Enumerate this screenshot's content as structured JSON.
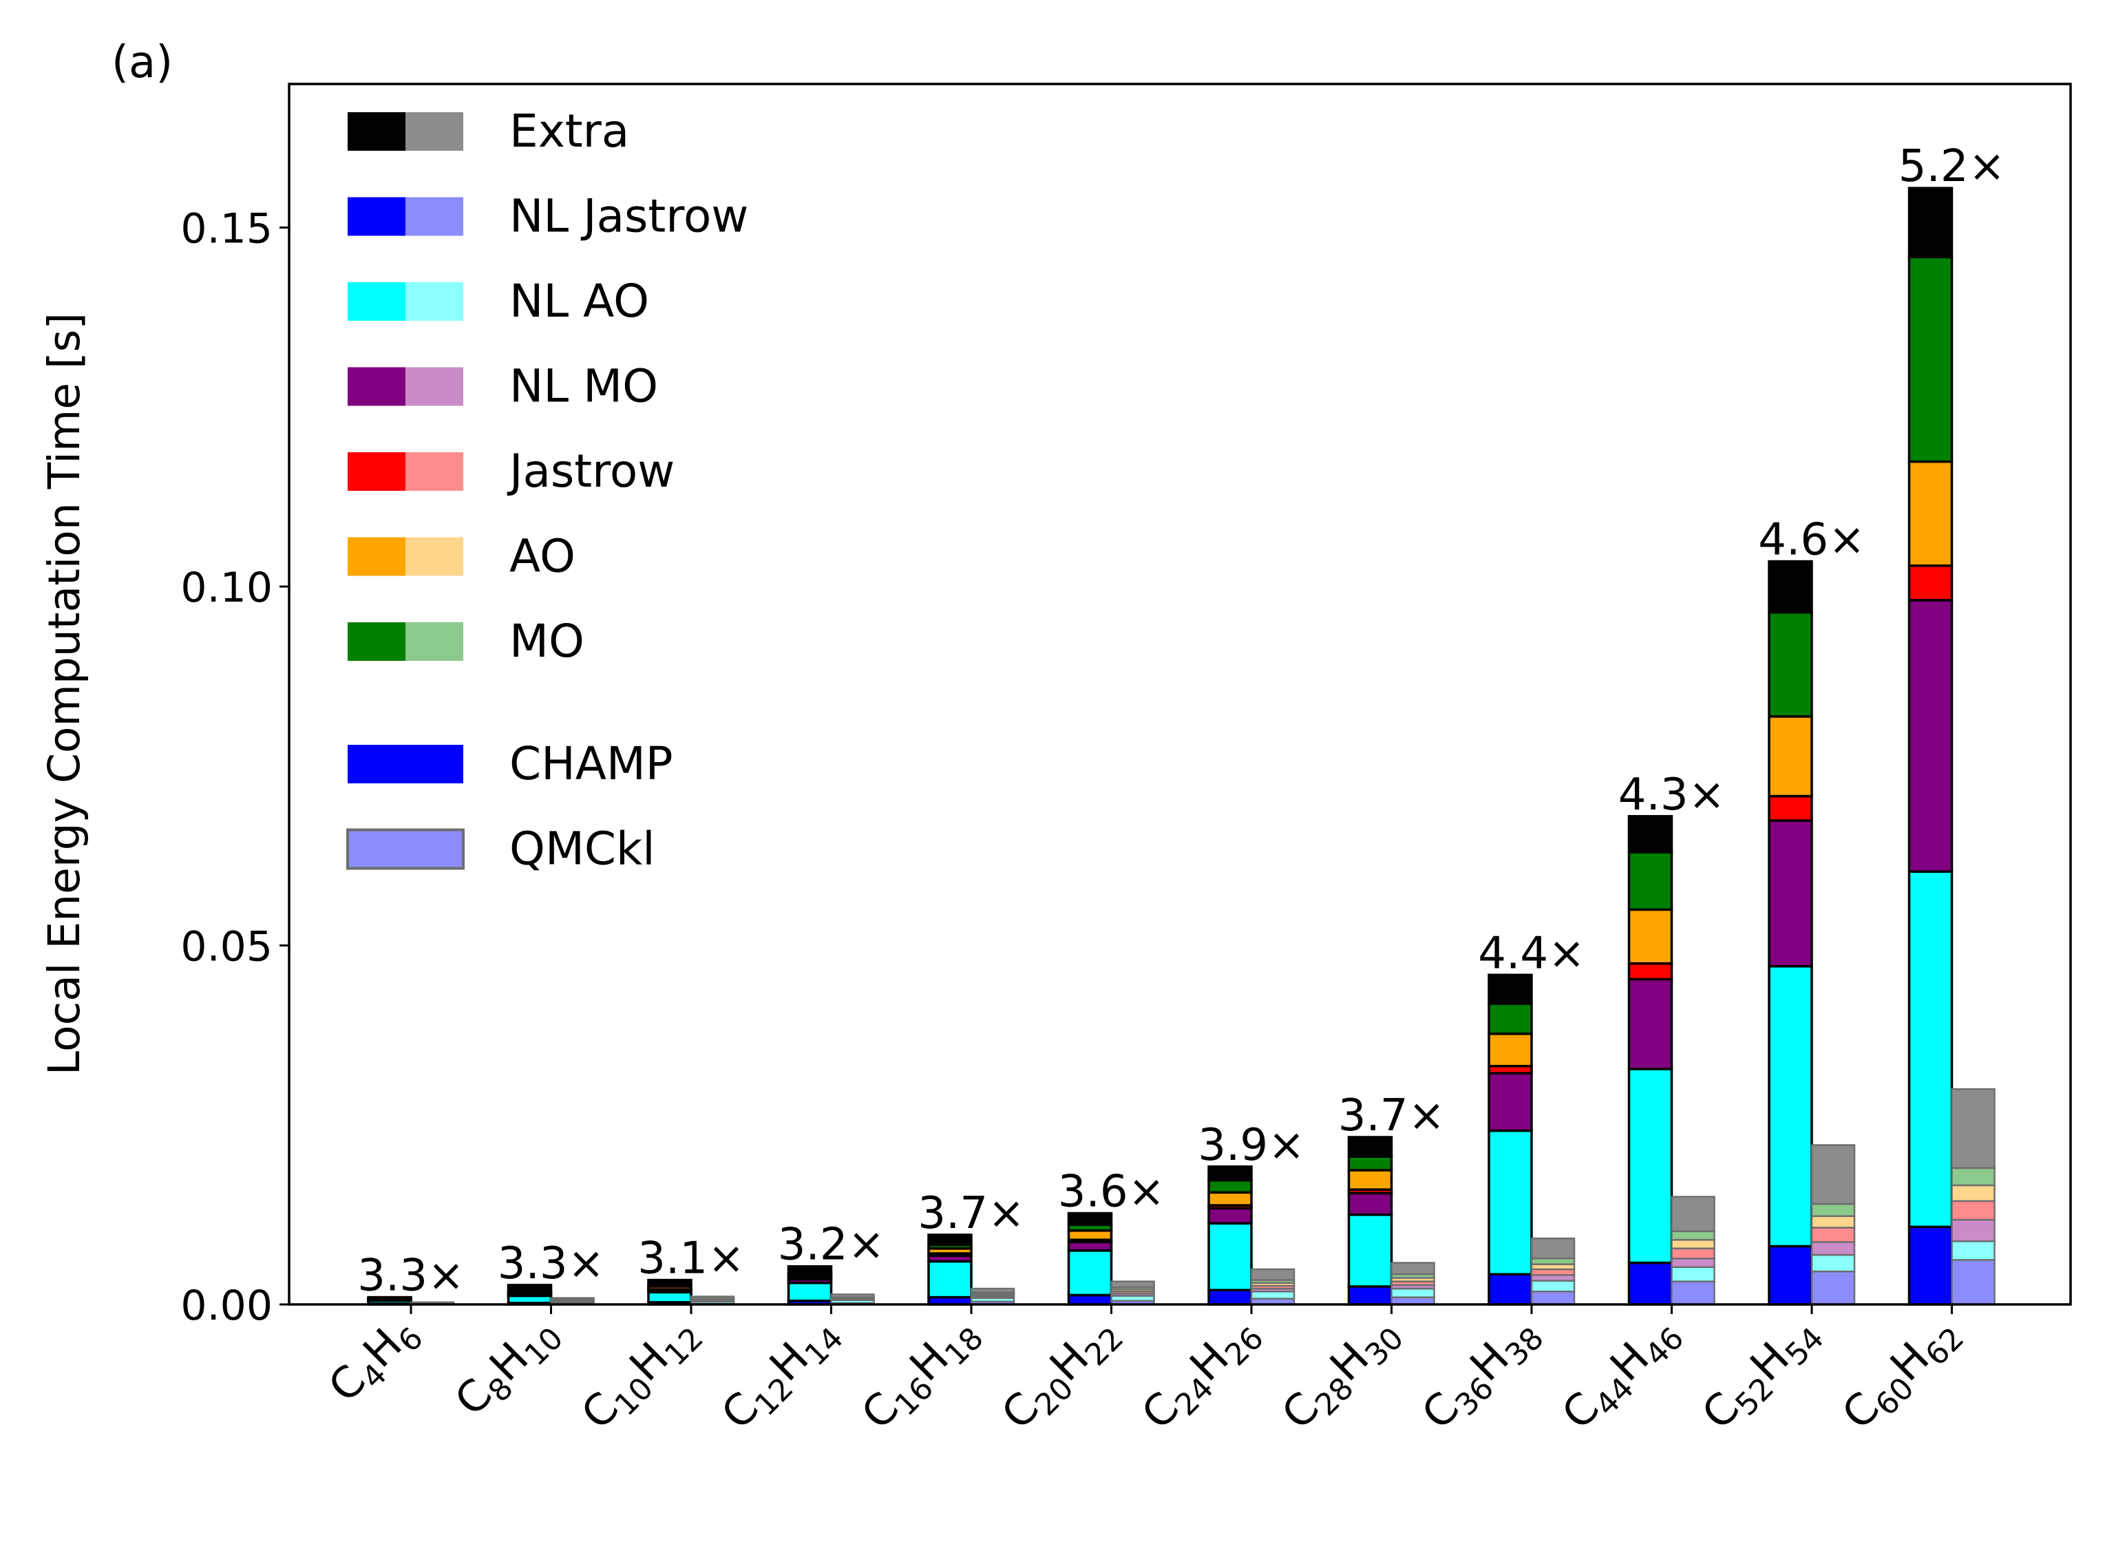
{
  "figure": {
    "panel_label": "(a)"
  },
  "colors": {
    "Extra": {
      "champ": "#000000",
      "qmckl": "#8c8c8c"
    },
    "NL Jastrow": {
      "champ": "#0000ff",
      "qmckl": "#8c8cff"
    },
    "NL AO": {
      "champ": "#00ffff",
      "qmckl": "#8cffff"
    },
    "NL MO": {
      "champ": "#800080",
      "qmckl": "#c98cc9"
    },
    "Jastrow": {
      "champ": "#ff0000",
      "qmckl": "#ff8c8c"
    },
    "AO": {
      "champ": "#ffa500",
      "qmckl": "#ffd68c"
    },
    "MO": {
      "champ": "#008000",
      "qmckl": "#8cc98c"
    }
  },
  "legend": {
    "components": [
      "Extra",
      "NL Jastrow",
      "NL AO",
      "NL MO",
      "Jastrow",
      "AO",
      "MO"
    ],
    "codes": [
      {
        "label": "CHAMP",
        "color": "#0000ff"
      },
      {
        "label": "QMCkl",
        "color": "#8c8cff"
      }
    ]
  },
  "chart_data": {
    "type": "bar",
    "stacked": true,
    "title": "",
    "xlabel": "",
    "ylabel": "Local Energy Computation Time [s]",
    "ylim": [
      0,
      0.17
    ],
    "yticks": [
      "0.00",
      "0.05",
      "0.10",
      "0.15"
    ],
    "grid": false,
    "legend_position": "top-left",
    "categories": [
      "C4H6",
      "C8H10",
      "C10H12",
      "C12H14",
      "C16H18",
      "C20H22",
      "C24H26",
      "C28H30",
      "C36H38",
      "C44H46",
      "C52H54",
      "C60H62"
    ],
    "category_labels": [
      [
        [
          "C",
          ""
        ],
        [
          "4",
          "sub"
        ],
        [
          "H",
          ""
        ],
        [
          "6",
          "sub"
        ]
      ],
      [
        [
          "C",
          ""
        ],
        [
          "8",
          "sub"
        ],
        [
          "H",
          ""
        ],
        [
          "10",
          "sub"
        ]
      ],
      [
        [
          "C",
          ""
        ],
        [
          "10",
          "sub"
        ],
        [
          "H",
          ""
        ],
        [
          "12",
          "sub"
        ]
      ],
      [
        [
          "C",
          ""
        ],
        [
          "12",
          "sub"
        ],
        [
          "H",
          ""
        ],
        [
          "14",
          "sub"
        ]
      ],
      [
        [
          "C",
          ""
        ],
        [
          "16",
          "sub"
        ],
        [
          "H",
          ""
        ],
        [
          "18",
          "sub"
        ]
      ],
      [
        [
          "C",
          ""
        ],
        [
          "20",
          "sub"
        ],
        [
          "H",
          ""
        ],
        [
          "22",
          "sub"
        ]
      ],
      [
        [
          "C",
          ""
        ],
        [
          "24",
          "sub"
        ],
        [
          "H",
          ""
        ],
        [
          "26",
          "sub"
        ]
      ],
      [
        [
          "C",
          ""
        ],
        [
          "28",
          "sub"
        ],
        [
          "H",
          ""
        ],
        [
          "30",
          "sub"
        ]
      ],
      [
        [
          "C",
          ""
        ],
        [
          "36",
          "sub"
        ],
        [
          "H",
          ""
        ],
        [
          "38",
          "sub"
        ]
      ],
      [
        [
          "C",
          ""
        ],
        [
          "44",
          "sub"
        ],
        [
          "H",
          ""
        ],
        [
          "46",
          "sub"
        ]
      ],
      [
        [
          "C",
          ""
        ],
        [
          "52",
          "sub"
        ],
        [
          "H",
          ""
        ],
        [
          "54",
          "sub"
        ]
      ],
      [
        [
          "C",
          ""
        ],
        [
          "60",
          "sub"
        ],
        [
          "H",
          ""
        ],
        [
          "62",
          "sub"
        ]
      ]
    ],
    "speedups": [
      "3.3×",
      "3.3×",
      "3.1×",
      "3.2×",
      "3.7×",
      "3.6×",
      "3.9×",
      "3.7×",
      "4.4×",
      "4.3×",
      "4.6×",
      "5.2×"
    ],
    "component_order": [
      "NL Jastrow",
      "NL AO",
      "NL MO",
      "Jastrow",
      "AO",
      "MO",
      "Extra"
    ],
    "series": [
      {
        "name": "CHAMP",
        "components": {
          "NL Jastrow": [
            0.0001,
            0.0002,
            0.0003,
            0.0005,
            0.001,
            0.0013,
            0.002,
            0.0025,
            0.0042,
            0.0058,
            0.0081,
            0.0108
          ],
          "NL AO": [
            0.0004,
            0.001,
            0.0014,
            0.0025,
            0.005,
            0.0062,
            0.0093,
            0.01,
            0.02,
            0.027,
            0.039,
            0.0495
          ],
          "NL MO": [
            0.0001,
            0.0002,
            0.0003,
            0.0005,
            0.0008,
            0.0012,
            0.0021,
            0.003,
            0.008,
            0.0125,
            0.0203,
            0.0378
          ],
          "Jastrow": [
            0.0,
            0.0001,
            0.0001,
            0.0002,
            0.0003,
            0.0003,
            0.0004,
            0.0005,
            0.001,
            0.0022,
            0.0034,
            0.0048
          ],
          "AO": [
            0.0001,
            0.0002,
            0.0004,
            0.0003,
            0.0007,
            0.0013,
            0.0018,
            0.0027,
            0.0045,
            0.0075,
            0.0111,
            0.0145
          ],
          "MO": [
            0.0001,
            0.0001,
            0.0002,
            0.0003,
            0.0005,
            0.0008,
            0.0017,
            0.0019,
            0.0042,
            0.008,
            0.0145,
            0.0285
          ],
          "Extra": [
            0.0002,
            0.0009,
            0.0007,
            0.001,
            0.0014,
            0.0016,
            0.0019,
            0.0027,
            0.004,
            0.005,
            0.0071,
            0.0096
          ]
        }
      },
      {
        "name": "QMCkl",
        "components": {
          "NL Jastrow": [
            0.0001,
            0.0001,
            0.0001,
            0.0002,
            0.0004,
            0.0005,
            0.0008,
            0.001,
            0.0018,
            0.0032,
            0.0046,
            0.0062
          ],
          "NL AO": [
            0.0001,
            0.0002,
            0.0003,
            0.0004,
            0.0005,
            0.0007,
            0.001,
            0.0012,
            0.0015,
            0.002,
            0.0023,
            0.0026
          ],
          "NL MO": [
            0.0,
            0.0001,
            0.0001,
            0.0001,
            0.0002,
            0.0003,
            0.0004,
            0.0005,
            0.0008,
            0.0012,
            0.0018,
            0.003
          ],
          "Jastrow": [
            0.0,
            0.0001,
            0.0001,
            0.0001,
            0.0002,
            0.0003,
            0.0004,
            0.0005,
            0.0008,
            0.0014,
            0.002,
            0.0026
          ],
          "AO": [
            0.0,
            0.0001,
            0.0001,
            0.0001,
            0.0002,
            0.0003,
            0.0004,
            0.0005,
            0.0007,
            0.0012,
            0.0016,
            0.0022
          ],
          "MO": [
            0.0,
            0.0001,
            0.0001,
            0.0001,
            0.0002,
            0.0003,
            0.0004,
            0.0005,
            0.0008,
            0.0012,
            0.0017,
            0.0024
          ],
          "Extra": [
            0.0001,
            0.0002,
            0.0003,
            0.0004,
            0.0005,
            0.0008,
            0.0015,
            0.0016,
            0.0028,
            0.0048,
            0.0082,
            0.011
          ]
        }
      }
    ]
  }
}
